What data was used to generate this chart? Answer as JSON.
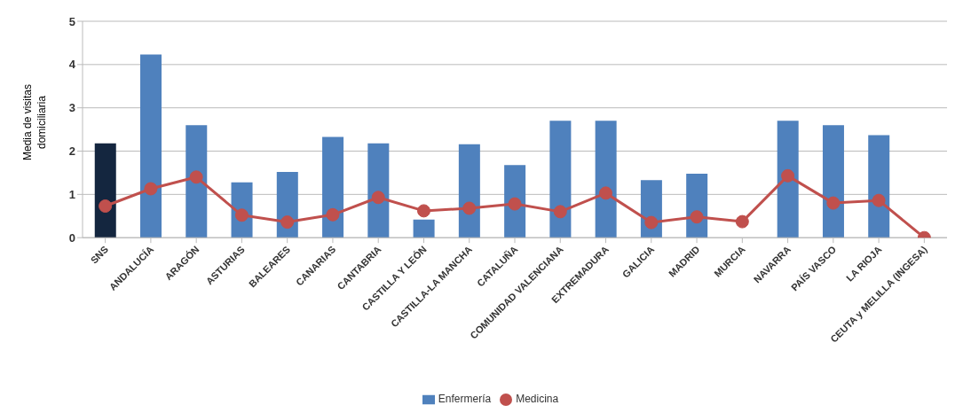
{
  "chart_data": {
    "type": "bar",
    "ylabel": "Media de visitas domiciliaria",
    "categories": [
      "SNS",
      "ANDALUCÍA",
      "ARAGÓN",
      "ASTURIAS",
      "BALEARES",
      "CANARIAS",
      "CANTABRIA",
      "CASTILLA Y LEÓN",
      "CASTILLA-LA MANCHA",
      "CATALUÑA",
      "COMUNIDAD VALENCIANA",
      "EXTREMADURA",
      "GALICIA",
      "MADRID",
      "MURCIA",
      "NAVARRA",
      "PAÍS VASCO",
      "LA RIOJA",
      "CEUTA y MELILLA (INGESA)"
    ],
    "series": [
      {
        "name": "Enfermería",
        "color": "#4f81bd",
        "colors": [
          "#14263f",
          "#4f81bd",
          "#4f81bd",
          "#4f81bd",
          "#4f81bd",
          "#4f81bd",
          "#4f81bd",
          "#4f81bd",
          "#4f81bd",
          "#4f81bd",
          "#4f81bd",
          "#4f81bd",
          "#4f81bd",
          "#4f81bd",
          "#4f81bd",
          "#4f81bd",
          "#4f81bd",
          "#4f81bd",
          "#4f81bd"
        ],
        "values": [
          2.18,
          4.23,
          2.6,
          1.28,
          1.52,
          2.33,
          2.18,
          0.42,
          2.16,
          1.68,
          2.7,
          2.7,
          1.33,
          1.48,
          null,
          2.7,
          2.6,
          2.37,
          null
        ]
      },
      {
        "name": "Medicina",
        "type": "line",
        "color": "#c0504d",
        "marker": "circle",
        "values": [
          0.73,
          1.13,
          1.4,
          0.52,
          0.36,
          0.53,
          0.93,
          0.62,
          0.68,
          0.78,
          0.6,
          1.03,
          0.35,
          0.48,
          0.37,
          1.43,
          0.8,
          0.86,
          0
        ]
      }
    ],
    "ylim": [
      0,
      5
    ],
    "yticks": [
      0,
      1,
      2,
      3,
      4,
      5
    ],
    "grid": "y",
    "legend": "bottom"
  }
}
